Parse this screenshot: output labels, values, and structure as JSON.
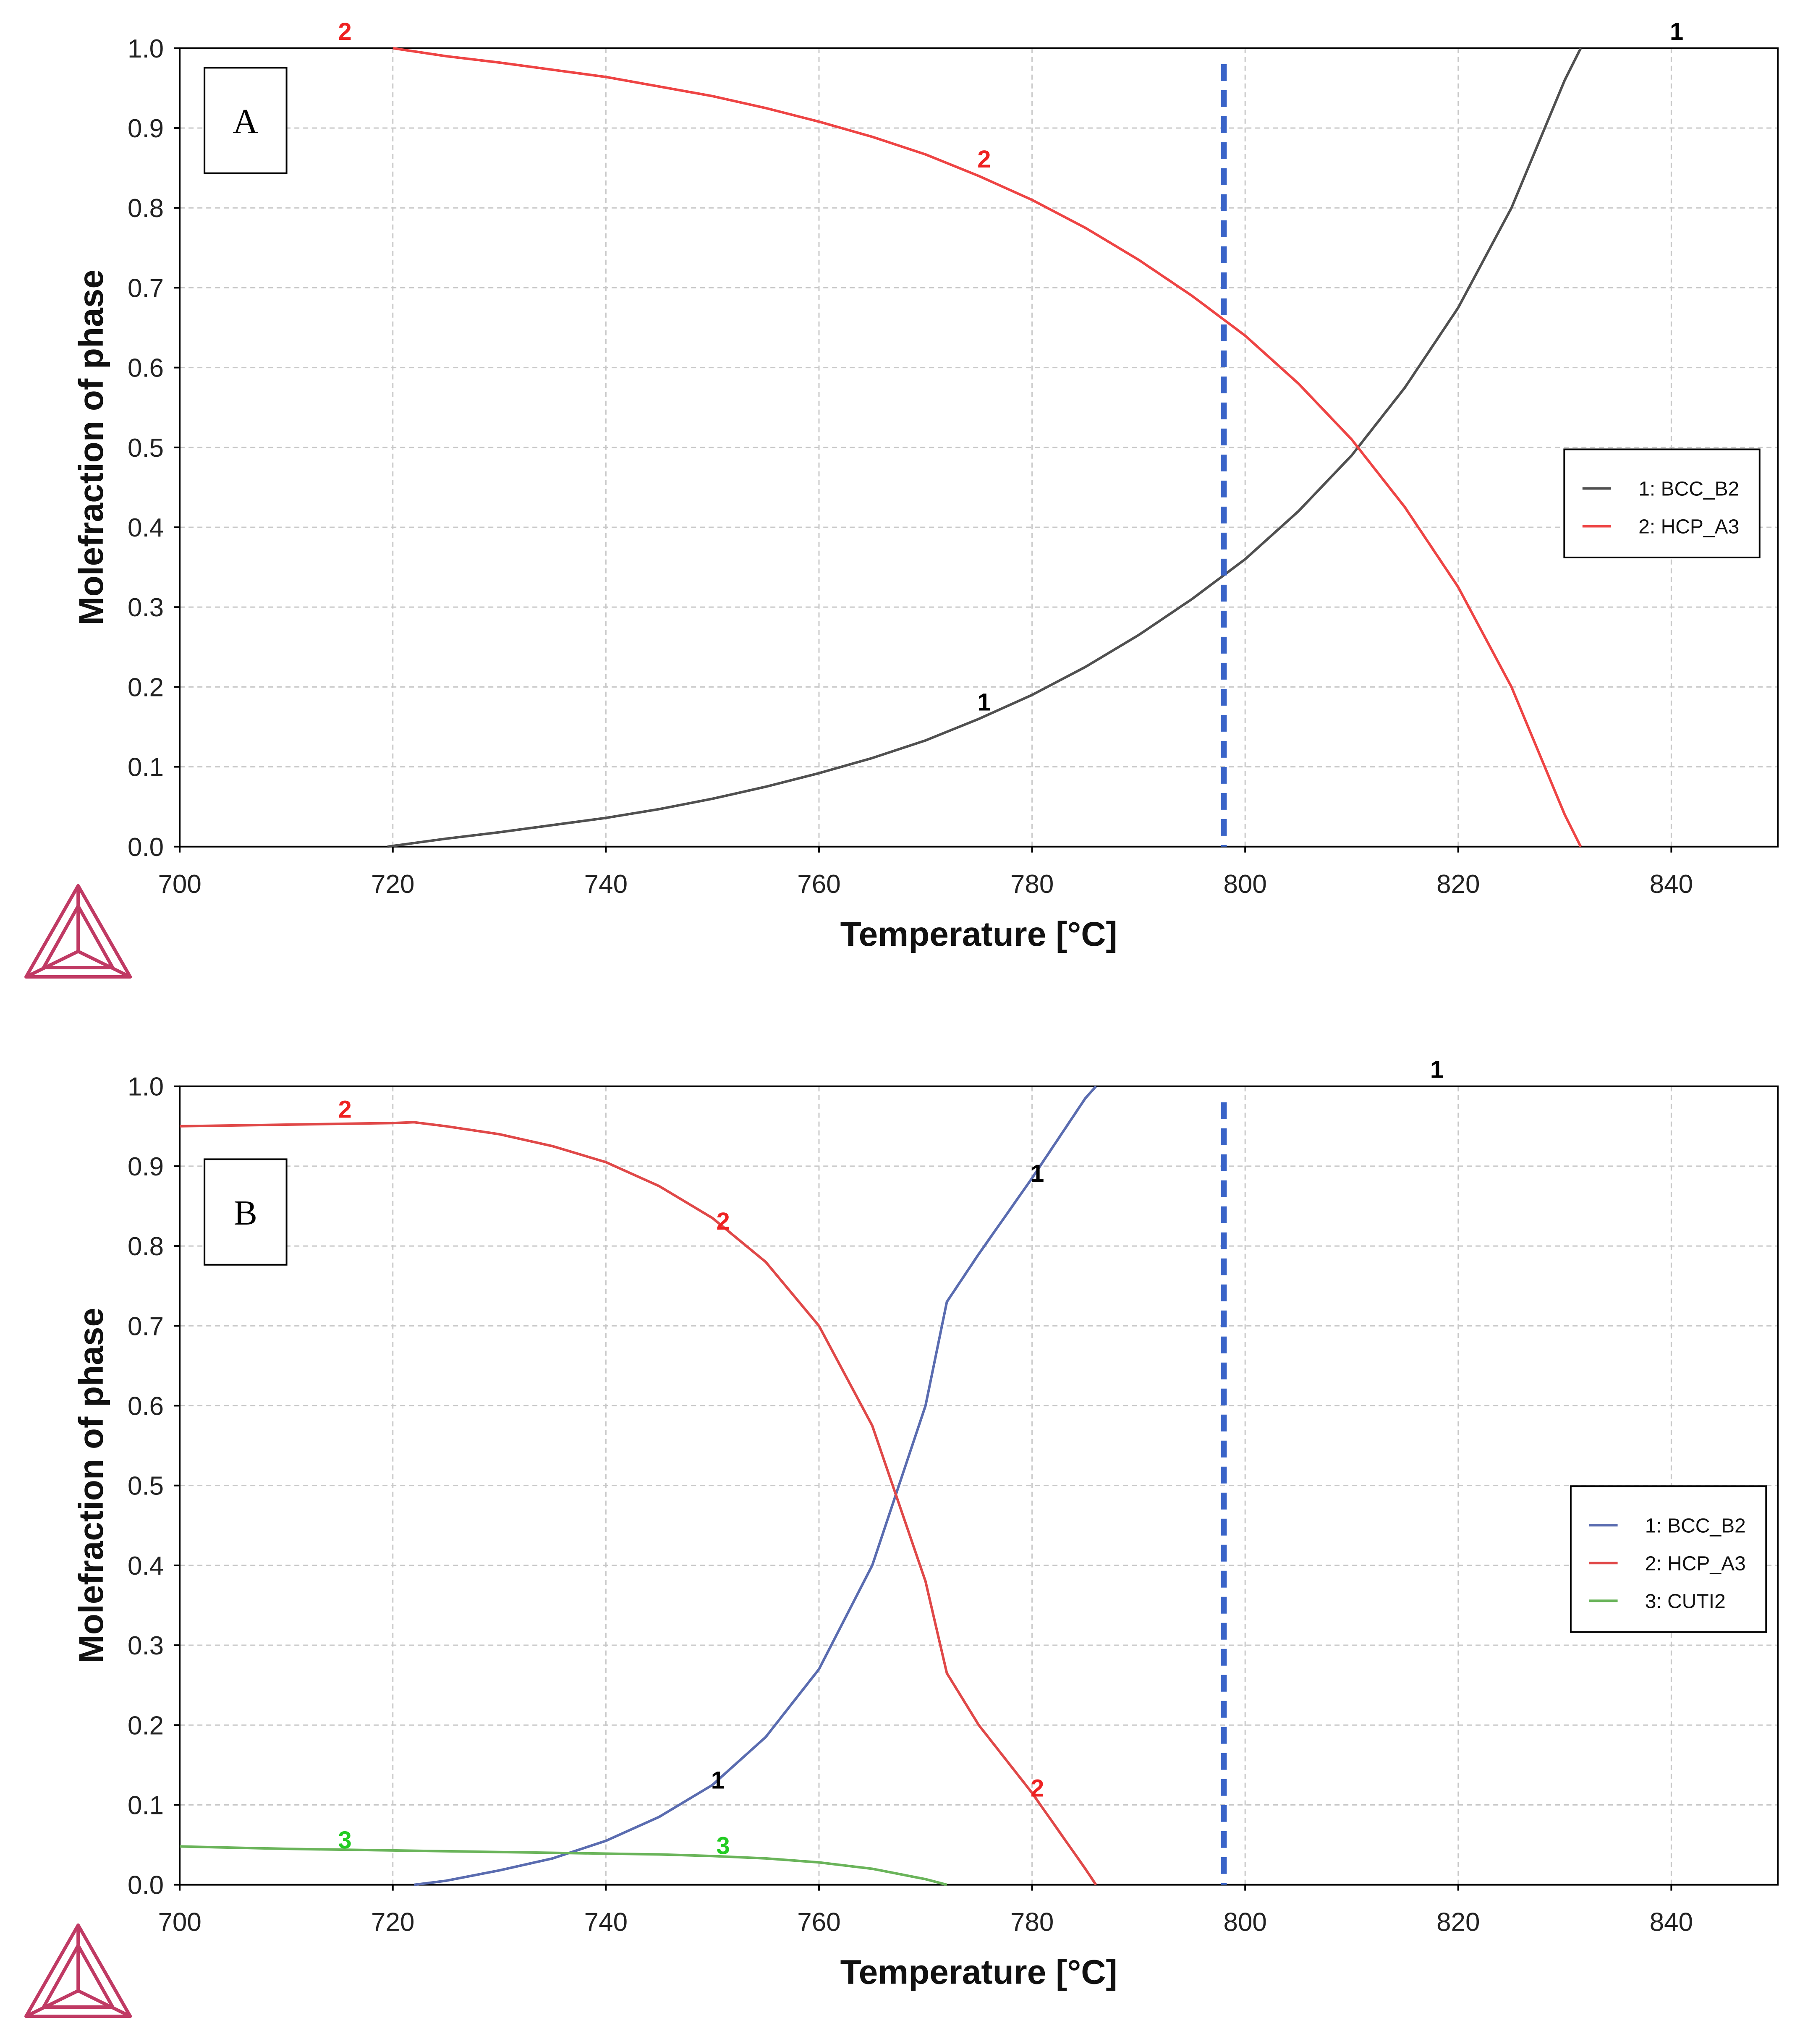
{
  "chart_data": [
    {
      "type": "line",
      "panel_label": "A",
      "xlabel": "Temperature [°C]",
      "ylabel": "Molefraction of phase",
      "xlim": [
        700,
        850
      ],
      "ylim": [
        0,
        1
      ],
      "x_ticks": [
        "700",
        "720",
        "740",
        "760",
        "780",
        "800",
        "820",
        "840"
      ],
      "y_ticks": [
        "0.0",
        "0.1",
        "0.2",
        "0.3",
        "0.4",
        "0.5",
        "0.6",
        "0.7",
        "0.8",
        "0.9",
        "1.0"
      ],
      "grid": true,
      "legend_position": "right",
      "marker_line": {
        "x": 798,
        "color": "#3a64c8",
        "style": "dashed"
      },
      "series": [
        {
          "id": "1",
          "name": "1: BCC_B2",
          "color": "#505050",
          "label_color": "#000000",
          "x": [
            719.5,
            725,
            730,
            735,
            740,
            745,
            750,
            755,
            760,
            765,
            770,
            775,
            780,
            785,
            790,
            795,
            800,
            805,
            810,
            815,
            820,
            825,
            830,
            831.5
          ],
          "y": [
            0.0,
            0.01,
            0.018,
            0.027,
            0.036,
            0.047,
            0.06,
            0.075,
            0.092,
            0.111,
            0.133,
            0.16,
            0.19,
            0.225,
            0.265,
            0.31,
            0.36,
            0.42,
            0.49,
            0.575,
            0.675,
            0.8,
            0.96,
            1.0
          ],
          "labels": [
            {
              "text": "1",
              "x": 775.5,
              "y": 0.18
            },
            {
              "text": "1",
              "x": 840.5,
              "y": 1.02
            }
          ]
        },
        {
          "id": "2",
          "name": "2: HCP_A3",
          "color": "#ee4444",
          "label_color": "#ee2222",
          "x": [
            720,
            725,
            730,
            735,
            740,
            745,
            750,
            755,
            760,
            765,
            770,
            775,
            780,
            785,
            790,
            795,
            800,
            805,
            810,
            815,
            820,
            825,
            830,
            831.5
          ],
          "y": [
            1.0,
            0.99,
            0.982,
            0.973,
            0.964,
            0.952,
            0.94,
            0.925,
            0.908,
            0.889,
            0.867,
            0.84,
            0.81,
            0.775,
            0.735,
            0.69,
            0.64,
            0.58,
            0.51,
            0.425,
            0.325,
            0.2,
            0.04,
            0.0
          ],
          "labels": [
            {
              "text": "2",
              "x": 715.5,
              "y": 1.02
            },
            {
              "text": "2",
              "x": 775.5,
              "y": 0.86
            }
          ]
        }
      ]
    },
    {
      "type": "line",
      "panel_label": "B",
      "xlabel": "Temperature [°C]",
      "ylabel": "Molefraction of phase",
      "xlim": [
        700,
        850
      ],
      "ylim": [
        0,
        1
      ],
      "x_ticks": [
        "700",
        "720",
        "740",
        "760",
        "780",
        "800",
        "820",
        "840"
      ],
      "y_ticks": [
        "0.0",
        "0.1",
        "0.2",
        "0.3",
        "0.4",
        "0.5",
        "0.6",
        "0.7",
        "0.8",
        "0.9",
        "1.0"
      ],
      "grid": true,
      "legend_position": "right",
      "marker_line": {
        "x": 798,
        "color": "#3a64c8",
        "style": "dashed"
      },
      "series": [
        {
          "id": "1",
          "name": "1: BCC_B2",
          "color": "#5a6cb0",
          "label_color": "#000000",
          "x": [
            722,
            725,
            730,
            735,
            740,
            745,
            750,
            755,
            760,
            765,
            770,
            772,
            775,
            780,
            785,
            786
          ],
          "y": [
            0.0,
            0.005,
            0.018,
            0.033,
            0.055,
            0.085,
            0.125,
            0.185,
            0.27,
            0.4,
            0.6,
            0.73,
            0.79,
            0.885,
            0.985,
            1.0
          ],
          "labels": [
            {
              "text": "1",
              "x": 750.5,
              "y": 0.13
            },
            {
              "text": "1",
              "x": 780.5,
              "y": 0.89
            },
            {
              "text": "1",
              "x": 818,
              "y": 1.02
            }
          ]
        },
        {
          "id": "2",
          "name": "2: HCP_A3",
          "color": "#e04848",
          "label_color": "#ee2222",
          "x": [
            700,
            710,
            720,
            722,
            725,
            730,
            735,
            740,
            745,
            750,
            755,
            760,
            765,
            770,
            772,
            775,
            780,
            785,
            786
          ],
          "y": [
            0.95,
            0.952,
            0.954,
            0.955,
            0.95,
            0.94,
            0.925,
            0.905,
            0.875,
            0.835,
            0.78,
            0.7,
            0.575,
            0.38,
            0.265,
            0.2,
            0.115,
            0.02,
            0.0
          ],
          "labels": [
            {
              "text": "2",
              "x": 715.5,
              "y": 0.97
            },
            {
              "text": "2",
              "x": 751,
              "y": 0.83
            },
            {
              "text": "2",
              "x": 780.5,
              "y": 0.12
            }
          ]
        },
        {
          "id": "3",
          "name": "3: CUTI2",
          "color": "#6ab45a",
          "label_color": "#22cc22",
          "x": [
            700,
            710,
            720,
            730,
            740,
            745,
            750,
            755,
            760,
            765,
            770,
            772
          ],
          "y": [
            0.048,
            0.045,
            0.043,
            0.041,
            0.039,
            0.038,
            0.036,
            0.033,
            0.028,
            0.02,
            0.007,
            0.0
          ],
          "labels": [
            {
              "text": "3",
              "x": 715.5,
              "y": 0.055
            },
            {
              "text": "3",
              "x": 751,
              "y": 0.048
            }
          ]
        }
      ]
    }
  ]
}
